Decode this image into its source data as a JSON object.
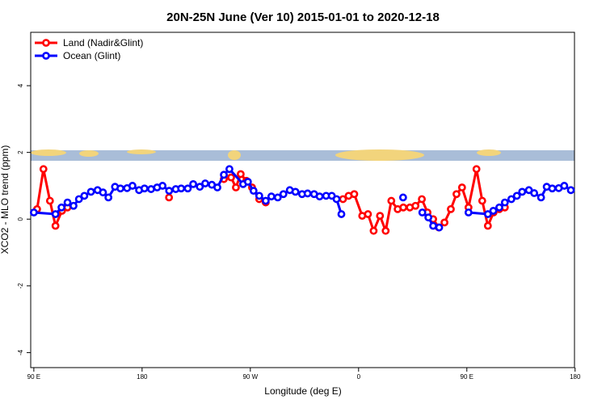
{
  "chart_data": {
    "type": "line",
    "title": "20N-25N June (Ver 10)   2015-01-01 to 2020-12-18",
    "x_label": "Longitude (deg E)",
    "y_label": "XCO2 - MLO trend (ppm)",
    "xlim": [
      87.4,
      539.5
    ],
    "ylim": [
      -4.45,
      5.6
    ],
    "xticks": [
      {
        "value": 90,
        "label": "90 E"
      },
      {
        "value": 180,
        "label": "180"
      },
      {
        "value": 270,
        "label": "90 W"
      },
      {
        "value": 360,
        "label": "0"
      },
      {
        "value": 450,
        "label": "90 E"
      },
      {
        "value": 540,
        "label": "180"
      }
    ],
    "yticks": [
      -4,
      -2,
      0,
      2,
      4
    ],
    "legend": "top-left",
    "series": [
      {
        "name": "Land (Nadir&Glint)",
        "color": "#ff0000",
        "x": [
          92.7,
          98,
          103.4,
          108,
          113.4,
          118,
          null,
          202.4,
          null,
          248,
          254,
          258,
          262,
          266.7,
          271.4,
          277.4,
          282.8,
          null,
          347,
          351.7,
          356.4,
          363,
          367.8,
          372.5,
          377.8,
          382.5,
          387.2,
          392.5,
          397.2,
          402.6,
          407.3,
          412.6,
          417.3,
          422,
          426.7,
          431.4,
          436.7,
          441.4,
          446,
          451.4,
          458,
          462.8,
          467.5,
          472.2,
          477,
          481.6
        ],
        "values": [
          0.3,
          1.5,
          0.55,
          -0.2,
          0.25,
          0.35,
          null,
          0.65,
          null,
          1.2,
          1.25,
          0.95,
          1.35,
          1.15,
          0.95,
          0.6,
          0.5,
          null,
          0.6,
          0.7,
          0.75,
          0.1,
          0.15,
          -0.35,
          0.1,
          -0.35,
          0.55,
          0.3,
          0.35,
          0.35,
          0.4,
          0.6,
          0.2,
          0,
          -0.25,
          -0.1,
          0.3,
          0.75,
          0.95,
          0.35,
          1.5,
          0.55,
          -0.2,
          0.2,
          0.3,
          0.35
        ]
      },
      {
        "name": "Ocean (Glint)",
        "color": "#0000ff",
        "x": [
          90,
          108,
          113,
          118,
          123,
          127.5,
          132,
          137.5,
          143,
          147.5,
          152,
          157.5,
          162,
          167.5,
          172,
          177.5,
          182,
          187.5,
          192.5,
          197,
          202.5,
          208,
          212.5,
          218,
          222.5,
          228,
          232.5,
          238,
          242.6,
          248,
          252.6,
          264,
          268,
          272.7,
          277.4,
          282.8,
          287.5,
          292.8,
          297.5,
          302.8,
          307.5,
          313,
          317.6,
          323,
          327.6,
          333,
          337.7,
          341.7,
          345.7,
          null,
          397,
          null,
          413,
          418,
          422,
          427,
          null,
          451.4,
          467.5,
          472,
          477,
          481.6,
          487,
          491.6,
          496,
          501.6,
          506,
          511.7,
          516.4,
          521,
          526.4,
          531,
          536.5
        ],
        "values": [
          0.2,
          0.15,
          0.35,
          0.5,
          0.4,
          0.6,
          0.7,
          0.82,
          0.87,
          0.8,
          0.65,
          0.97,
          0.92,
          0.93,
          1.0,
          0.87,
          0.92,
          0.9,
          0.95,
          1.0,
          0.85,
          0.9,
          0.92,
          0.92,
          1.05,
          0.97,
          1.07,
          1.03,
          0.95,
          1.33,
          1.5,
          1.05,
          1.12,
          0.85,
          0.7,
          0.55,
          0.68,
          0.65,
          0.75,
          0.87,
          0.82,
          0.75,
          0.77,
          0.75,
          0.68,
          0.7,
          0.7,
          0.6,
          0.15,
          null,
          0.65,
          null,
          0.2,
          0.05,
          -0.2,
          -0.25,
          null,
          0.2,
          0.15,
          0.25,
          0.35,
          0.5,
          0.6,
          0.7,
          0.82,
          0.87,
          0.78,
          0.65,
          0.97,
          0.92,
          0.93,
          1.0,
          0.87
        ]
      }
    ]
  }
}
